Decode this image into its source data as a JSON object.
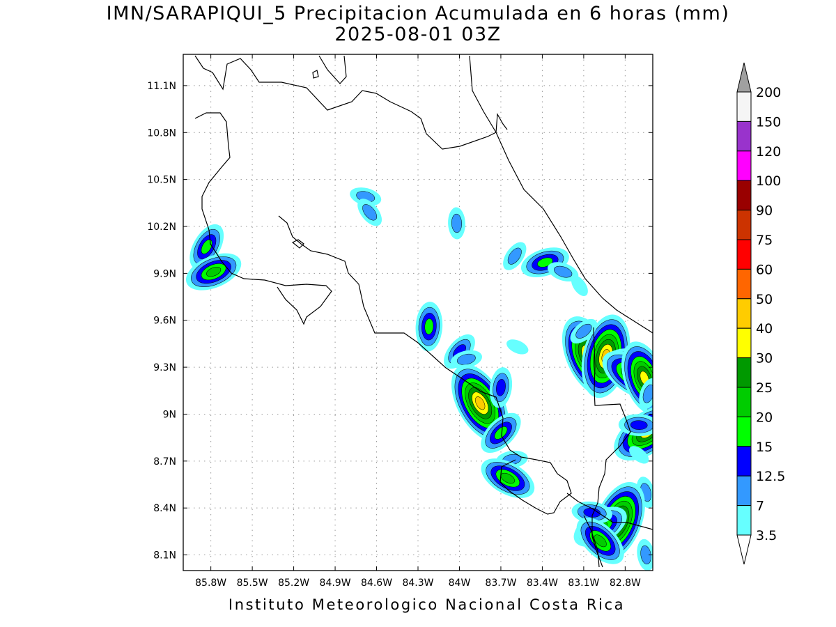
{
  "title": {
    "line1": "IMN/SARAPIQUI_5 Precipitacion Acumulada en 6 horas (mm)",
    "line2": "2025-08-01 03Z"
  },
  "footer": "Instituto Meteorologico Nacional Costa Rica",
  "map": {
    "lon_range": [
      -86.0,
      -82.6
    ],
    "lat_range": [
      8.0,
      11.3
    ],
    "x_ticks": [
      {
        "value": -85.8,
        "label": "85.8W"
      },
      {
        "value": -85.5,
        "label": "85.5W"
      },
      {
        "value": -85.2,
        "label": "85.2W"
      },
      {
        "value": -84.9,
        "label": "84.9W"
      },
      {
        "value": -84.6,
        "label": "84.6W"
      },
      {
        "value": -84.3,
        "label": "84.3W"
      },
      {
        "value": -84.0,
        "label": "84W"
      },
      {
        "value": -83.7,
        "label": "83.7W"
      },
      {
        "value": -83.4,
        "label": "83.4W"
      },
      {
        "value": -83.1,
        "label": "83.1W"
      },
      {
        "value": -82.8,
        "label": "82.8W"
      }
    ],
    "y_ticks": [
      {
        "value": 11.1,
        "label": "11.1N"
      },
      {
        "value": 10.8,
        "label": "10.8N"
      },
      {
        "value": 10.5,
        "label": "10.5N"
      },
      {
        "value": 10.2,
        "label": "10.2N"
      },
      {
        "value": 9.9,
        "label": "9.9N"
      },
      {
        "value": 9.6,
        "label": "9.6N"
      },
      {
        "value": 9.3,
        "label": "9.3N"
      },
      {
        "value": 9.0,
        "label": "9N"
      },
      {
        "value": 8.7,
        "label": "8.7N"
      },
      {
        "value": 8.4,
        "label": "8.4N"
      },
      {
        "value": 8.1,
        "label": "8.1N"
      }
    ],
    "grid": true,
    "precip_cells": [
      {
        "lon": -85.83,
        "lat": 10.07,
        "max": 15
      },
      {
        "lon": -85.78,
        "lat": 9.91,
        "max": 20
      },
      {
        "lon": -84.68,
        "lat": 10.39,
        "max": 7
      },
      {
        "lon": -84.65,
        "lat": 10.29,
        "max": 7
      },
      {
        "lon": -84.02,
        "lat": 10.22,
        "max": 7
      },
      {
        "lon": -83.6,
        "lat": 10.01,
        "max": 7
      },
      {
        "lon": -83.38,
        "lat": 9.97,
        "max": 15
      },
      {
        "lon": -83.25,
        "lat": 9.91,
        "max": 7
      },
      {
        "lon": -83.13,
        "lat": 9.82,
        "max": 3.5
      },
      {
        "lon": -84.22,
        "lat": 9.56,
        "max": 15
      },
      {
        "lon": -84.0,
        "lat": 9.4,
        "max": 12.5
      },
      {
        "lon": -83.95,
        "lat": 9.35,
        "max": 7
      },
      {
        "lon": -83.58,
        "lat": 9.43,
        "max": 3.5
      },
      {
        "lon": -83.85,
        "lat": 9.07,
        "max": 40
      },
      {
        "lon": -83.7,
        "lat": 9.17,
        "max": 12.5
      },
      {
        "lon": -83.7,
        "lat": 8.88,
        "max": 15
      },
      {
        "lon": -83.62,
        "lat": 8.71,
        "max": 7
      },
      {
        "lon": -83.65,
        "lat": 8.59,
        "max": 20
      },
      {
        "lon": -83.06,
        "lat": 9.37,
        "max": 40
      },
      {
        "lon": -82.94,
        "lat": 9.37,
        "max": 40
      },
      {
        "lon": -83.1,
        "lat": 9.53,
        "max": 7
      },
      {
        "lon": -82.8,
        "lat": 9.35,
        "max": 12.5
      },
      {
        "lon": -82.75,
        "lat": 9.25,
        "max": 25
      },
      {
        "lon": -82.66,
        "lat": 9.23,
        "max": 30
      },
      {
        "lon": -82.63,
        "lat": 9.13,
        "max": 7
      },
      {
        "lon": -82.64,
        "lat": 8.88,
        "max": 30
      },
      {
        "lon": -82.7,
        "lat": 8.93,
        "max": 12.5
      },
      {
        "lon": -82.7,
        "lat": 8.74,
        "max": 3.5
      },
      {
        "lon": -82.65,
        "lat": 8.5,
        "max": 7
      },
      {
        "lon": -82.85,
        "lat": 8.31,
        "max": 40
      },
      {
        "lon": -82.98,
        "lat": 8.28,
        "max": 20
      },
      {
        "lon": -83.04,
        "lat": 8.37,
        "max": 12.5
      },
      {
        "lon": -82.98,
        "lat": 8.19,
        "max": 20
      },
      {
        "lon": -82.65,
        "lat": 8.1,
        "max": 7
      }
    ]
  },
  "colorbar": {
    "levels": [
      "3.5",
      "7",
      "12.5",
      "15",
      "20",
      "25",
      "30",
      "40",
      "50",
      "60",
      "75",
      "90",
      "100",
      "120",
      "150",
      "200"
    ],
    "colors": [
      "#66ffff",
      "#3399ff",
      "#0000ff",
      "#00ff00",
      "#00cc00",
      "#009900",
      "#ffff00",
      "#ffcc00",
      "#ff6600",
      "#ff0000",
      "#cc3300",
      "#990000",
      "#ff00ff",
      "#9933cc",
      "#f5f5f5"
    ],
    "top_triangle_color": "#a0a0a0",
    "bottom_triangle_color": "#ffffff"
  }
}
